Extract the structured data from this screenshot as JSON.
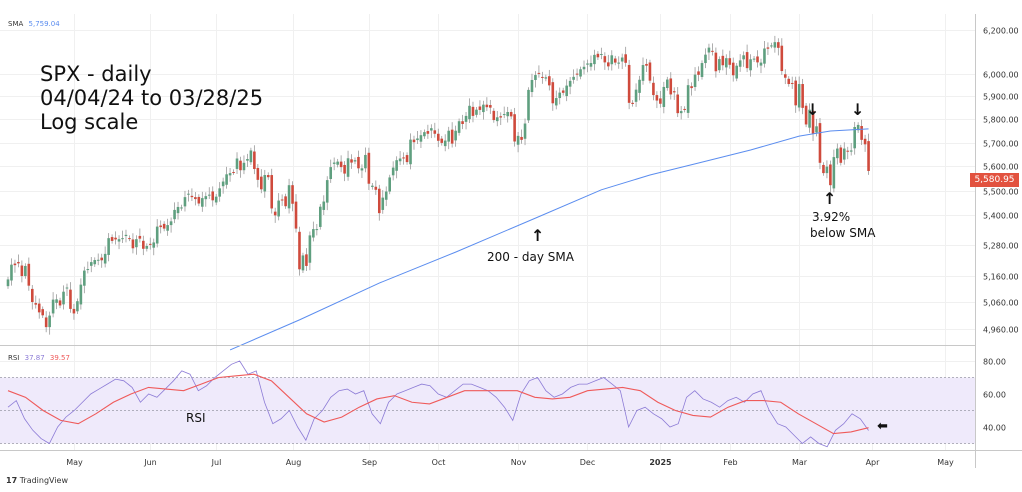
{
  "annotations": {
    "title_lines": [
      "SPX - daily",
      "04/04/24 to 03/28/25",
      "Log scale"
    ],
    "sma_label": "200 - day SMA",
    "below_sma_pct": "3.92%",
    "below_sma_text": "below SMA",
    "rsi_label": "RSI",
    "down_arrow": "↓",
    "up_arrow": "↑",
    "left_arrow": "⬅"
  },
  "legend": {
    "sma_name": "SMA",
    "sma_value": "5,759.04",
    "rsi_name": "RSI",
    "rsi_value": "37.87",
    "rsi_ma_value": "39.57"
  },
  "last_price_label": "5,580.95",
  "branding": "TradingView",
  "colors": {
    "up": "#5f9f7f",
    "down": "#cf4a3c",
    "sma": "#5b8def",
    "rsi": "#8c7bd6",
    "rsi_ma": "#ef5a5a",
    "rsi_band": "#efeafb",
    "last_price": "#e2523f"
  },
  "chart_data": [
    {
      "type": "candlestick",
      "title": "SPX - daily",
      "scale": "log",
      "ylim": [
        4900,
        6250
      ],
      "y_ticks": [
        4960,
        5060,
        5160,
        5280,
        5400,
        5500,
        5600,
        5700,
        5800,
        5900,
        6000,
        6200
      ],
      "y_tick_labels": [
        "4,960.00",
        "5,060.00",
        "5,160.00",
        "5,280.00",
        "5,400.00",
        "5,500.00",
        "5,600.00",
        "5,700.00",
        "5,800.00",
        "5,900.00",
        "6,000.00",
        "6,200.00"
      ],
      "x_tick_labels": [
        "May",
        "Jun",
        "Jul",
        "Aug",
        "Sep",
        "Oct",
        "Nov",
        "Dec",
        "2025",
        "Feb",
        "Mar",
        "Apr",
        "May"
      ],
      "x_tick_day_index": [
        19,
        41,
        60,
        82,
        104,
        124,
        147,
        167,
        188,
        208,
        228,
        249,
        270
      ],
      "closes": [
        5147,
        5204,
        5202,
        5209,
        5160,
        5199,
        5123,
        5061,
        5051,
        5022,
        5011,
        4967,
        5010,
        5070,
        5071,
        5048,
        5100,
        5116,
        5035,
        5018,
        5064,
        5127,
        5181,
        5187,
        5214,
        5222,
        5223,
        5221,
        5246,
        5308,
        5297,
        5303,
        5304,
        5308,
        5321,
        5307,
        5268,
        5304,
        5306,
        5266,
        5277,
        5283,
        5291,
        5354,
        5352,
        5346,
        5360,
        5375,
        5421,
        5433,
        5431,
        5473,
        5487,
        5473,
        5465,
        5447,
        5469,
        5477,
        5483,
        5460,
        5475,
        5509,
        5537,
        5567,
        5572,
        5576,
        5633,
        5584,
        5615,
        5631,
        5667,
        5589,
        5544,
        5505,
        5564,
        5555,
        5427,
        5399,
        5459,
        5463,
        5436,
        5522,
        5446,
        5346,
        5186,
        5240,
        5199,
        5319,
        5344,
        5344,
        5434,
        5455,
        5543,
        5597,
        5616,
        5620,
        5597,
        5570,
        5634,
        5616,
        5626,
        5592,
        5592,
        5648,
        5528,
        5520,
        5503,
        5408,
        5471,
        5496,
        5554,
        5595,
        5626,
        5633,
        5634,
        5618,
        5713,
        5702,
        5718,
        5732,
        5745,
        5738,
        5762,
        5738,
        5708,
        5699,
        5709,
        5751,
        5696,
        5751,
        5792,
        5780,
        5815,
        5859,
        5815,
        5842,
        5841,
        5864,
        5853,
        5851,
        5797,
        5809,
        5808,
        5823,
        5832,
        5813,
        5705,
        5729,
        5712,
        5782,
        5929,
        5973,
        5995,
        6001,
        5984,
        5985,
        5949,
        5870,
        5893,
        5917,
        5916,
        5948,
        5969,
        5987,
        5998,
        6021,
        6032,
        6047,
        6049,
        6086,
        6075,
        6090,
        6052,
        6034,
        6084,
        6051,
        6051,
        6074,
        6050,
        5872,
        5867,
        5930,
        5974,
        6040,
        6037,
        5970,
        5906,
        5882,
        5868,
        5942,
        5975,
        5909,
        5918,
        5827,
        5836,
        5842,
        5950,
        5937,
        5997,
        5996,
        6049,
        6087,
        6119,
        6101,
        6012,
        6067,
        6039,
        6071,
        6041,
        5994,
        6037,
        6061,
        6084,
        6026,
        6066,
        6069,
        6052,
        6051,
        6115,
        6114,
        6129,
        6144,
        6118,
        6013,
        5983,
        5955,
        5956,
        5861,
        5955,
        5850,
        5778,
        5842,
        5739,
        5770,
        5615,
        5572,
        5599,
        5522,
        5639,
        5675,
        5615,
        5675,
        5662,
        5667,
        5767,
        5776,
        5712,
        5693,
        5580.95
      ],
      "sma200": {
        "name": "SMA 200",
        "day_index": [
          64,
          84,
          107,
          129,
          152,
          171,
          185,
          199,
          214,
          228,
          237,
          248
        ],
        "values": [
          4883,
          4994,
          5133,
          5253,
          5388,
          5503,
          5564,
          5614,
          5669,
          5728,
          5750,
          5759.04
        ]
      }
    },
    {
      "type": "line",
      "title": "RSI",
      "ylim": [
        24,
        86
      ],
      "y_ticks": [
        40,
        60,
        80
      ],
      "y_tick_labels": [
        "40.00",
        "60.00",
        "80.00"
      ],
      "bands": [
        30,
        50,
        70
      ],
      "series": [
        {
          "name": "RSI",
          "values": [
            52,
            56,
            45,
            38,
            33,
            30,
            40,
            46,
            50,
            55,
            60,
            63,
            66,
            69,
            68,
            64,
            55,
            60,
            58,
            63,
            68,
            74,
            72,
            62,
            65,
            70,
            74,
            78,
            80,
            72,
            74,
            55,
            42,
            45,
            50,
            40,
            32,
            45,
            50,
            58,
            62,
            63,
            60,
            62,
            48,
            42,
            55,
            60,
            62,
            64,
            66,
            65,
            60,
            58,
            62,
            66,
            66,
            64,
            62,
            58,
            52,
            44,
            60,
            68,
            70,
            62,
            58,
            60,
            64,
            66,
            66,
            68,
            70,
            66,
            62,
            40,
            50,
            52,
            48,
            45,
            40,
            42,
            58,
            62,
            57,
            55,
            52,
            56,
            58,
            55,
            60,
            62,
            50,
            42,
            40,
            35,
            30,
            34,
            30,
            28,
            38,
            42,
            48,
            45,
            37.87
          ]
        },
        {
          "name": "RSI MA",
          "values": [
            62,
            58,
            50,
            44,
            42,
            48,
            55,
            60,
            64,
            63,
            62,
            66,
            70,
            71,
            72,
            68,
            58,
            48,
            43,
            46,
            52,
            57,
            59,
            55,
            54,
            58,
            62,
            62,
            62,
            62,
            58,
            57,
            58,
            62,
            63,
            64,
            62,
            55,
            50,
            47,
            46,
            52,
            56,
            56,
            55,
            48,
            42,
            36,
            37,
            39.57
          ]
        }
      ]
    }
  ]
}
